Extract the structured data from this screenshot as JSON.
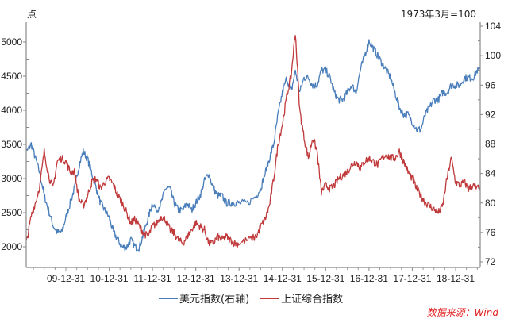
{
  "chart_data": {
    "type": "line",
    "title": "",
    "left_axis": {
      "label": "点",
      "ticks": [
        2000,
        2500,
        3000,
        3500,
        4000,
        4500,
        5000
      ],
      "range": [
        1700,
        5350
      ]
    },
    "right_axis": {
      "label": "1973年3月=100",
      "ticks": [
        72,
        76,
        80,
        84,
        88,
        92,
        96,
        100,
        104
      ],
      "range": [
        72,
        104
      ]
    },
    "x_ticks": [
      "09-12-31",
      "10-12-31",
      "11-12-31",
      "12-12-31",
      "13-12-31",
      "14-12-31",
      "15-12-31",
      "16-12-31",
      "17-12-31",
      "18-12-31"
    ],
    "x_range": [
      2009.0,
      2019.6
    ],
    "legend": [
      "美元指数(右轴)",
      "上证综合指数"
    ],
    "series": [
      {
        "name": "美元指数(右轴)",
        "axis": "right",
        "color": "#4a7ebb",
        "x": [
          2009.0,
          2009.1,
          2009.2,
          2009.3,
          2009.4,
          2009.5,
          2009.6,
          2009.7,
          2009.8,
          2009.9,
          2010.0,
          2010.1,
          2010.2,
          2010.3,
          2010.4,
          2010.5,
          2010.6,
          2010.7,
          2010.8,
          2010.9,
          2011.0,
          2011.1,
          2011.2,
          2011.3,
          2011.4,
          2011.5,
          2011.6,
          2011.7,
          2011.8,
          2011.9,
          2012.0,
          2012.1,
          2012.2,
          2012.3,
          2012.4,
          2012.5,
          2012.6,
          2012.7,
          2012.8,
          2012.9,
          2013.0,
          2013.1,
          2013.2,
          2013.3,
          2013.4,
          2013.5,
          2013.6,
          2013.7,
          2013.8,
          2013.9,
          2014.0,
          2014.2,
          2014.4,
          2014.5,
          2014.6,
          2014.7,
          2014.8,
          2014.9,
          2015.0,
          2015.1,
          2015.2,
          2015.3,
          2015.4,
          2015.5,
          2015.6,
          2015.7,
          2015.8,
          2015.9,
          2016.0,
          2016.1,
          2016.2,
          2016.3,
          2016.4,
          2016.5,
          2016.6,
          2016.7,
          2016.8,
          2016.9,
          2017.0,
          2017.1,
          2017.2,
          2017.3,
          2017.4,
          2017.5,
          2017.6,
          2017.7,
          2017.8,
          2017.9,
          2018.0,
          2018.1,
          2018.2,
          2018.3,
          2018.4,
          2018.5,
          2018.6,
          2018.7,
          2018.8,
          2018.9,
          2019.0,
          2019.1,
          2019.2,
          2019.3,
          2019.4,
          2019.5,
          2019.6
        ],
        "values": [
          86,
          87,
          88,
          86,
          84,
          81,
          79,
          77,
          76,
          76,
          78,
          80,
          82,
          85,
          87,
          86,
          84,
          82,
          80,
          79,
          78,
          76,
          75,
          74,
          74,
          75,
          74,
          74,
          76,
          78,
          80,
          79,
          80,
          82,
          82,
          80,
          79,
          79,
          80,
          79,
          80,
          81,
          83,
          84,
          82,
          81,
          81,
          80,
          80,
          80,
          80,
          80,
          81,
          82,
          84,
          86,
          88,
          92,
          95,
          97,
          95,
          98,
          95,
          97,
          97,
          96,
          96,
          98,
          98,
          97,
          95,
          94,
          94,
          95,
          96,
          95,
          98,
          100,
          102,
          101,
          100,
          99,
          98,
          97,
          95,
          93,
          92,
          92,
          91,
          90,
          90,
          92,
          93,
          94,
          94,
          95,
          95,
          96,
          96,
          96,
          97,
          97,
          97,
          98,
          98
        ]
      },
      {
        "name": "上证综合指数",
        "axis": "left",
        "color": "#c0393b",
        "x": [
          2009.0,
          2009.1,
          2009.2,
          2009.3,
          2009.4,
          2009.5,
          2009.6,
          2009.7,
          2009.8,
          2009.9,
          2010.0,
          2010.1,
          2010.2,
          2010.3,
          2010.4,
          2010.5,
          2010.6,
          2010.7,
          2010.8,
          2010.9,
          2011.0,
          2011.1,
          2011.2,
          2011.3,
          2011.4,
          2011.5,
          2011.6,
          2011.7,
          2011.8,
          2011.9,
          2012.0,
          2012.1,
          2012.2,
          2012.3,
          2012.4,
          2012.5,
          2012.6,
          2012.7,
          2012.8,
          2012.9,
          2013.0,
          2013.1,
          2013.2,
          2013.3,
          2013.4,
          2013.5,
          2013.6,
          2013.7,
          2013.8,
          2013.9,
          2014.0,
          2014.2,
          2014.4,
          2014.5,
          2014.6,
          2014.7,
          2014.8,
          2014.9,
          2015.0,
          2015.1,
          2015.2,
          2015.3,
          2015.4,
          2015.5,
          2015.6,
          2015.7,
          2015.8,
          2015.9,
          2016.0,
          2016.1,
          2016.2,
          2016.3,
          2016.4,
          2016.5,
          2016.6,
          2016.7,
          2016.8,
          2016.9,
          2017.0,
          2017.1,
          2017.2,
          2017.3,
          2017.4,
          2017.5,
          2017.6,
          2017.7,
          2017.8,
          2017.9,
          2018.0,
          2018.1,
          2018.2,
          2018.3,
          2018.4,
          2018.5,
          2018.6,
          2018.7,
          2018.8,
          2018.9,
          2019.0,
          2019.1,
          2019.2,
          2019.3,
          2019.4,
          2019.5,
          2019.6
        ],
        "values": [
          1850,
          2100,
          2450,
          2650,
          2900,
          3400,
          3050,
          2850,
          3250,
          3300,
          3250,
          3100,
          3100,
          2700,
          2600,
          2750,
          2950,
          3000,
          2850,
          2950,
          3000,
          2900,
          2750,
          2650,
          2500,
          2350,
          2400,
          2300,
          2200,
          2150,
          2300,
          2350,
          2450,
          2400,
          2250,
          2200,
          2100,
          2050,
          2150,
          2250,
          2350,
          2300,
          2250,
          2050,
          2050,
          2150,
          2100,
          2150,
          2100,
          2050,
          2050,
          2100,
          2150,
          2300,
          2400,
          2600,
          3000,
          3500,
          3800,
          4200,
          4500,
          5150,
          4000,
          3600,
          3300,
          3600,
          3400,
          2800,
          2900,
          2850,
          2900,
          3000,
          3050,
          3100,
          3200,
          3250,
          3150,
          3250,
          3300,
          3250,
          3200,
          3300,
          3350,
          3300,
          3300,
          3400,
          3250,
          3100,
          3000,
          2850,
          2750,
          2650,
          2600,
          2550,
          2500,
          2600,
          3000,
          3300,
          2950,
          2900,
          2950,
          2850,
          2900,
          2850,
          2900
        ]
      }
    ]
  },
  "labels": {
    "left_unit": "点",
    "right_unit": "1973年3月=100",
    "legend_usd": "美元指数(右轴)",
    "legend_sse": "上证综合指数",
    "source": "数据来源：Wind"
  }
}
